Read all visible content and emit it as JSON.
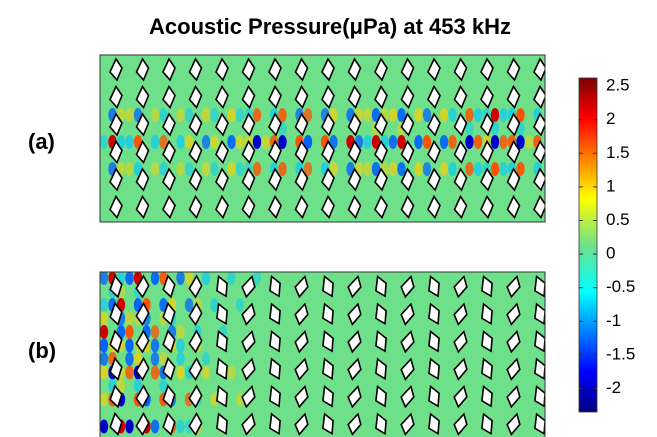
{
  "title": "Acoustic Pressure(μPa) at 453 kHz",
  "panels": [
    {
      "label": "(a)"
    },
    {
      "label": "(b)"
    }
  ],
  "colorbar": {
    "lim": [
      -2.35,
      2.62
    ],
    "ticks": [
      2.5,
      2,
      1.5,
      1,
      0.5,
      0,
      -0.5,
      -1,
      -1.5,
      -2
    ]
  }
}
